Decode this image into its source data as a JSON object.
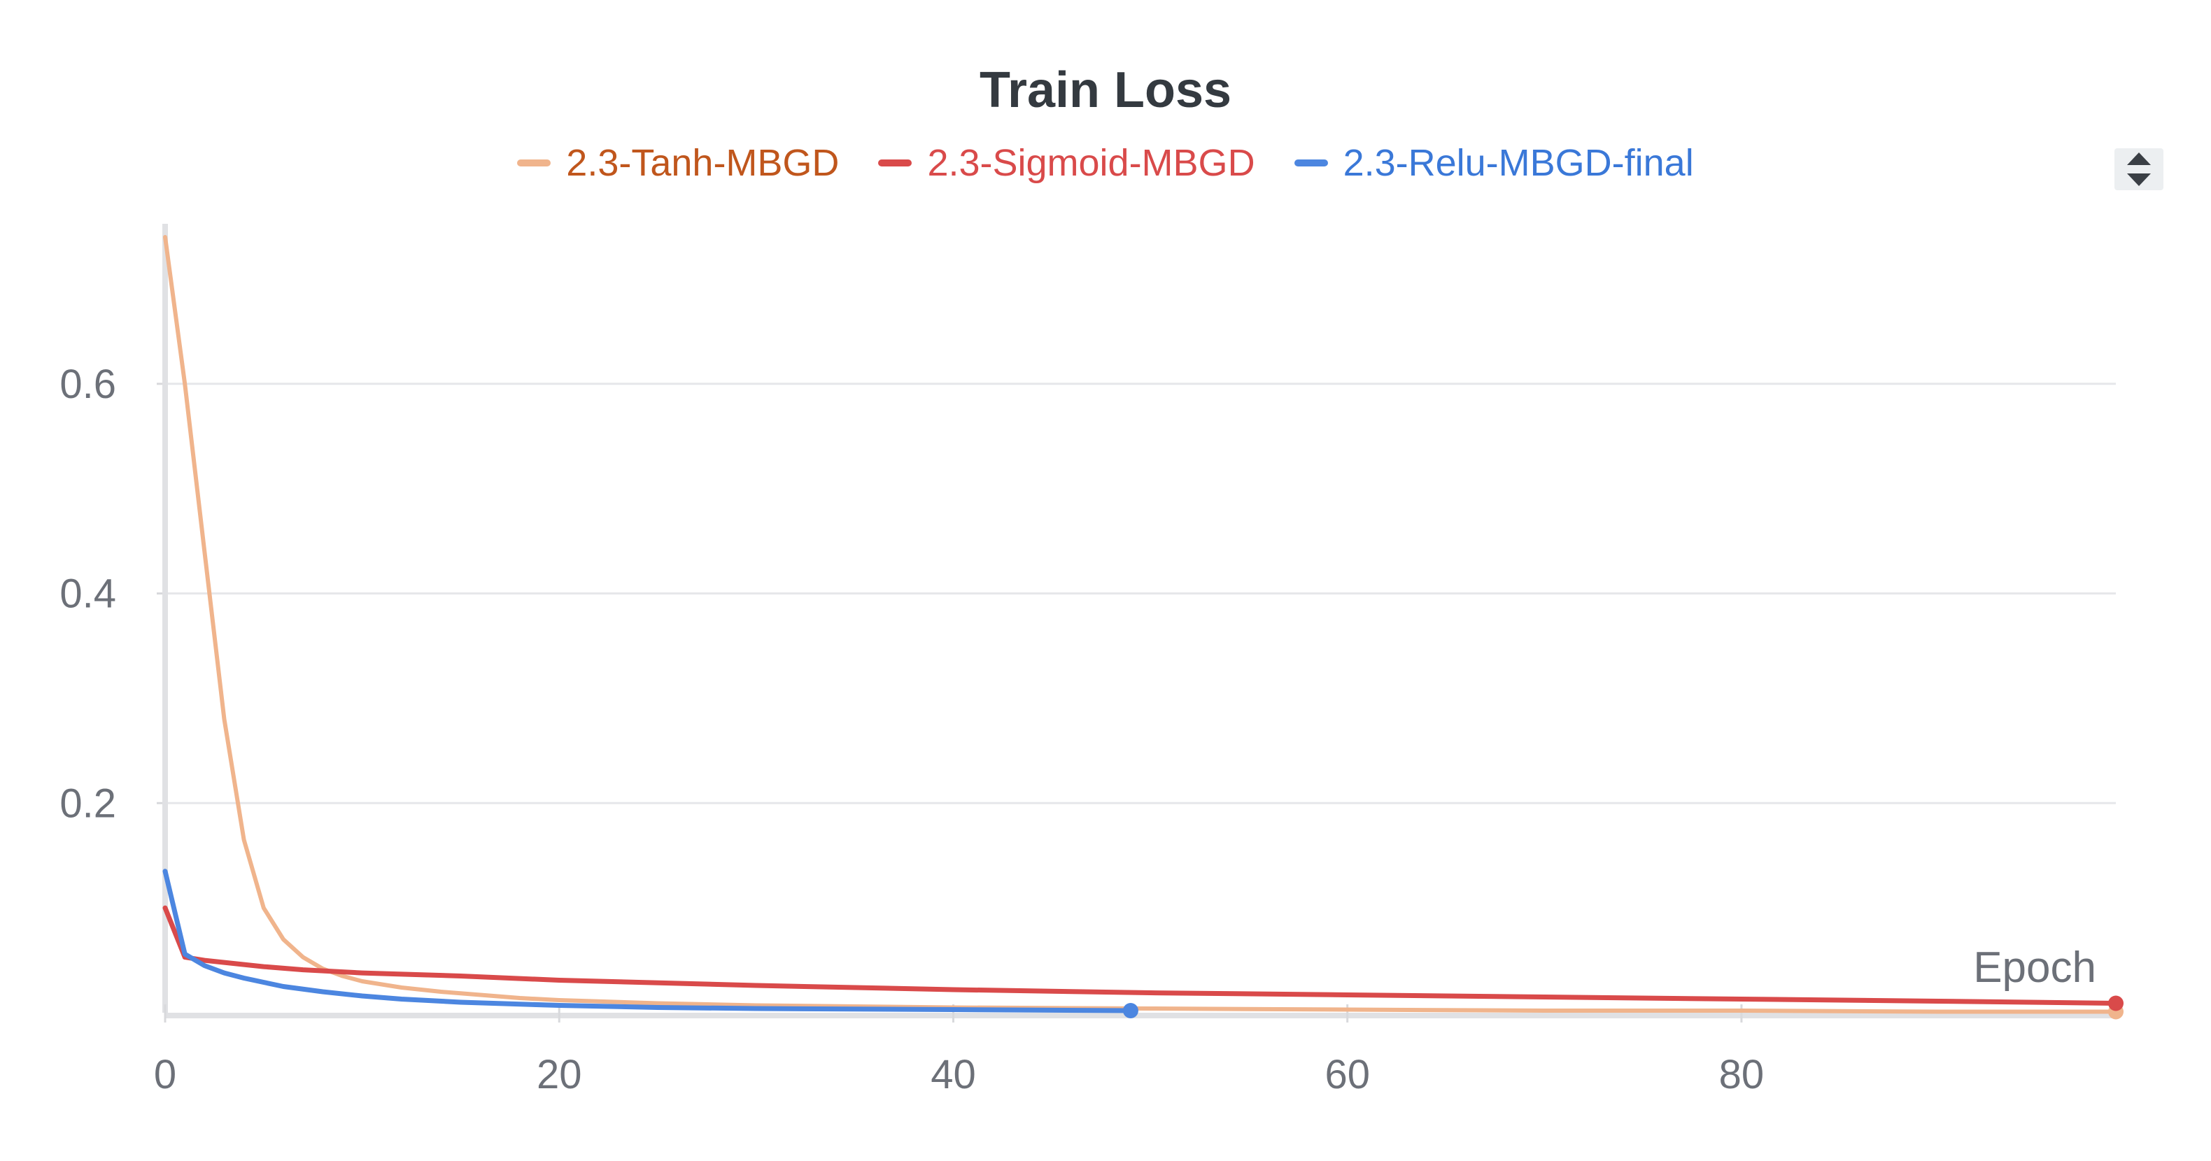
{
  "chart_data": {
    "type": "line",
    "title": "Train Loss",
    "xlabel": "Epoch",
    "ylabel": "",
    "xlim": [
      0,
      99
    ],
    "ylim": [
      0,
      0.75
    ],
    "x_ticks": [
      "0",
      "20",
      "40",
      "60",
      "80"
    ],
    "y_ticks": [
      "0.2",
      "0.4",
      "0.6"
    ],
    "grid": true,
    "legend_position": "top-center",
    "series": [
      {
        "name": "2.3-Tanh-MBGD",
        "color": "#f0b48c",
        "label_color": "#c0561c",
        "x": [
          0,
          1,
          2,
          3,
          4,
          5,
          6,
          7,
          8,
          9,
          10,
          12,
          14,
          16,
          18,
          20,
          25,
          30,
          35,
          40,
          50,
          60,
          70,
          80,
          90,
          99
        ],
        "values": [
          0.74,
          0.6,
          0.44,
          0.28,
          0.165,
          0.1,
          0.07,
          0.053,
          0.042,
          0.035,
          0.03,
          0.024,
          0.02,
          0.017,
          0.014,
          0.012,
          0.009,
          0.007,
          0.006,
          0.005,
          0.004,
          0.003,
          0.002,
          0.002,
          0.001,
          0.001
        ]
      },
      {
        "name": "2.3-Sigmoid-MBGD",
        "color": "#d94a4a",
        "label_color": "#d94a4a",
        "x": [
          0,
          1,
          2,
          3,
          5,
          7,
          10,
          15,
          20,
          30,
          40,
          50,
          60,
          70,
          80,
          90,
          99
        ],
        "values": [
          0.1,
          0.053,
          0.05,
          0.048,
          0.044,
          0.041,
          0.038,
          0.035,
          0.031,
          0.026,
          0.022,
          0.019,
          0.017,
          0.015,
          0.013,
          0.011,
          0.009
        ]
      },
      {
        "name": "2.3-Relu-MBGD-final",
        "color": "#4c86e0",
        "label_color": "#3a78d8",
        "x": [
          0,
          1,
          2,
          3,
          4,
          5,
          6,
          8,
          10,
          12,
          15,
          20,
          25,
          30,
          40,
          49
        ],
        "values": [
          0.135,
          0.056,
          0.045,
          0.038,
          0.033,
          0.029,
          0.025,
          0.02,
          0.016,
          0.013,
          0.01,
          0.007,
          0.005,
          0.004,
          0.003,
          0.002
        ]
      }
    ]
  }
}
